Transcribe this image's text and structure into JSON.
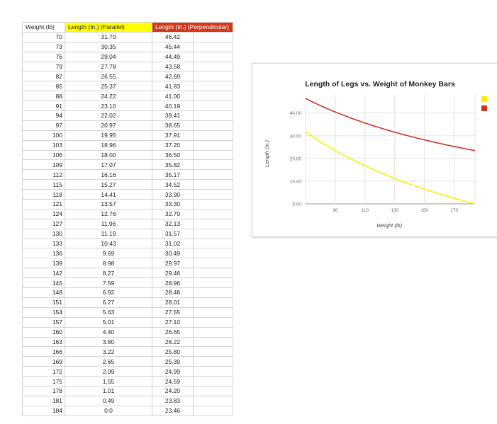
{
  "sheet": {
    "headers": [
      "Weight (lb)",
      "Length (In.) (Parallel)",
      "Length (In.) (Perpendicular)",
      ""
    ],
    "header_colors": {
      "parallel": "#ffff00",
      "perpendicular": "#d2391c"
    },
    "rows": [
      [
        "70",
        "31.70",
        "46.42"
      ],
      [
        "73",
        "30.35",
        "45.44"
      ],
      [
        "76",
        "29.04",
        "44.49"
      ],
      [
        "79",
        "27.78",
        "43.58"
      ],
      [
        "82",
        "26.55",
        "42.69"
      ],
      [
        "85",
        "25.37",
        "41.83"
      ],
      [
        "88",
        "24.22",
        "41.00"
      ],
      [
        "91",
        "23.10",
        "40.19"
      ],
      [
        "94",
        "22.02",
        "39.41"
      ],
      [
        "97",
        "20.97",
        "38.65"
      ],
      [
        "100",
        "19.95",
        "37.91"
      ],
      [
        "103",
        "18.96",
        "37.20"
      ],
      [
        "106",
        "18.00",
        "36.50"
      ],
      [
        "109",
        "17.07",
        "35.82"
      ],
      [
        "112",
        "16.16",
        "35.17"
      ],
      [
        "115",
        "15.27",
        "34.52"
      ],
      [
        "118",
        "14.41",
        "33.90"
      ],
      [
        "121",
        "13.57",
        "33.30"
      ],
      [
        "124",
        "12.76",
        "32.70"
      ],
      [
        "127",
        "11.96",
        "32.13"
      ],
      [
        "130",
        "11.19",
        "31.57"
      ],
      [
        "133",
        "10.43",
        "31.02"
      ],
      [
        "136",
        "9.69",
        "30.49"
      ],
      [
        "139",
        "8.98",
        "29.97"
      ],
      [
        "142",
        "8.27",
        "29.46"
      ],
      [
        "145",
        "7.59",
        "28.96"
      ],
      [
        "148",
        "6.92",
        "28.48"
      ],
      [
        "151",
        "6.27",
        "28.01"
      ],
      [
        "154",
        "5.63",
        "27.55"
      ],
      [
        "157",
        "5.01",
        "27.10"
      ],
      [
        "160",
        "4.40",
        "26.65"
      ],
      [
        "163",
        "3.80",
        "26.22"
      ],
      [
        "166",
        "3.22",
        "25.80"
      ],
      [
        "169",
        "2.65",
        "25.39"
      ],
      [
        "172",
        "2.09",
        "24.99"
      ],
      [
        "175",
        "1.55",
        "24.59"
      ],
      [
        "178",
        "1.01",
        "24.20"
      ],
      [
        "181",
        "0.49",
        "23.83"
      ],
      [
        "184",
        "0.0",
        "23.46"
      ]
    ]
  },
  "chart_data": {
    "type": "line",
    "title": "Length of Legs vs. Weight of Monkey Bars",
    "xlabel": "Weight (lb)",
    "ylabel": "Length (in.)",
    "xlim": [
      70,
      184
    ],
    "ylim": [
      0,
      48
    ],
    "x_ticks": [
      90,
      110,
      130,
      150,
      170
    ],
    "y_ticks": [
      0,
      10,
      20,
      30,
      40
    ],
    "y_tick_labels": [
      "0.00",
      "10.00",
      "20.00",
      "30.00",
      "40.00"
    ],
    "grid": true,
    "legend": "right",
    "x": [
      70,
      73,
      76,
      79,
      82,
      85,
      88,
      91,
      94,
      97,
      100,
      103,
      106,
      109,
      112,
      115,
      118,
      121,
      124,
      127,
      130,
      133,
      136,
      139,
      142,
      145,
      148,
      151,
      154,
      157,
      160,
      163,
      166,
      169,
      172,
      175,
      178,
      181,
      184
    ],
    "series": [
      {
        "color": "#ffee00",
        "values": [
          31.7,
          30.35,
          29.04,
          27.78,
          26.55,
          25.37,
          24.22,
          23.1,
          22.02,
          20.97,
          19.95,
          18.96,
          18.0,
          17.07,
          16.16,
          15.27,
          14.41,
          13.57,
          12.76,
          11.96,
          11.19,
          10.43,
          9.69,
          8.98,
          8.27,
          7.59,
          6.92,
          6.27,
          5.63,
          5.01,
          4.4,
          3.8,
          3.22,
          2.65,
          2.09,
          1.55,
          1.01,
          0.49,
          0.0
        ]
      },
      {
        "color": "#c9371d",
        "values": [
          46.42,
          45.44,
          44.49,
          43.58,
          42.69,
          41.83,
          41.0,
          40.19,
          39.41,
          38.65,
          37.91,
          37.2,
          36.5,
          35.82,
          35.17,
          34.52,
          33.9,
          33.3,
          32.7,
          32.13,
          31.57,
          31.02,
          30.49,
          29.97,
          29.46,
          28.96,
          28.48,
          28.01,
          27.55,
          27.1,
          26.65,
          26.22,
          25.8,
          25.39,
          24.99,
          24.59,
          24.2,
          23.83,
          23.46
        ]
      }
    ]
  }
}
